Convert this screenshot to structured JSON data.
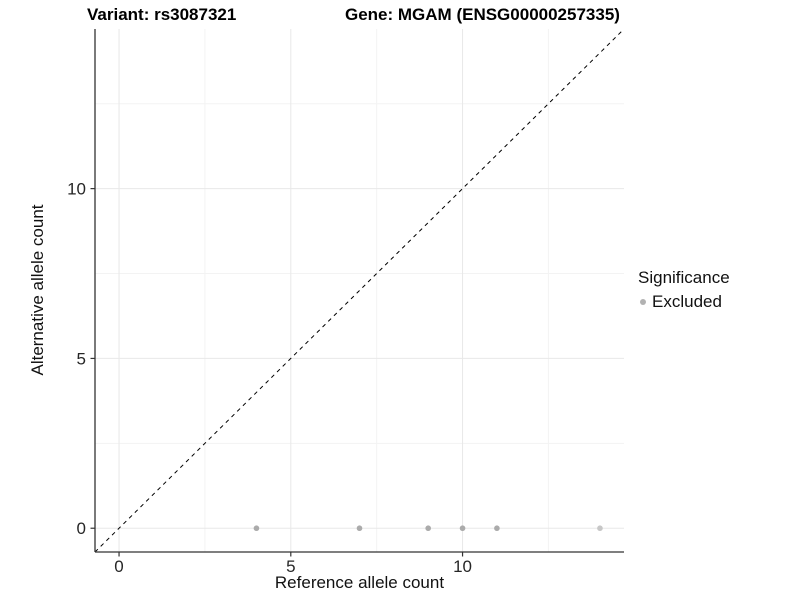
{
  "header": {
    "title_left": "Variant: rs3087321",
    "title_right": "Gene: MGAM (ENSG00000257335)"
  },
  "axes": {
    "x_title": "Reference allele count",
    "y_title": "Alternative allele count"
  },
  "legend": {
    "title": "Significance",
    "items": [
      {
        "label": "Excluded",
        "color": "#b2b2b2"
      }
    ]
  },
  "chart_data": {
    "type": "scatter",
    "title": "Variant: rs3087321    Gene: MGAM (ENSG00000257335)",
    "xlabel": "Reference allele count",
    "ylabel": "Alternative allele count",
    "xlim": [
      -0.7,
      14.7
    ],
    "ylim": [
      -0.7,
      14.7
    ],
    "x_major_ticks": [
      0,
      5,
      10
    ],
    "y_major_ticks": [
      0,
      5,
      10
    ],
    "x_minor_ticks": [
      2.5,
      7.5,
      12.5
    ],
    "y_minor_ticks": [
      2.5,
      7.5,
      12.5
    ],
    "grid": "on",
    "legend_position": "right",
    "series": [
      {
        "name": "Excluded",
        "marker_color": "#ababab",
        "points": [
          {
            "x": 4,
            "y": 0,
            "color": "#ababab"
          },
          {
            "x": 7,
            "y": 0,
            "color": "#ababab"
          },
          {
            "x": 9,
            "y": 0,
            "color": "#ababab"
          },
          {
            "x": 10,
            "y": 0,
            "color": "#ababab"
          },
          {
            "x": 11,
            "y": 0,
            "color": "#ababab"
          },
          {
            "x": 14,
            "y": 0,
            "color": "#c7c7c7"
          }
        ]
      }
    ],
    "reference_line": {
      "type": "abline",
      "slope": 1,
      "intercept": 0,
      "linestyle": "dashed",
      "color": "#000000"
    }
  },
  "style": {
    "grid_major_color": "#e8e8e8",
    "grid_minor_color": "#f3f3f3",
    "axis_line_color": "#333333",
    "tick_label_color": "#262626",
    "point_radius": 2.8
  }
}
